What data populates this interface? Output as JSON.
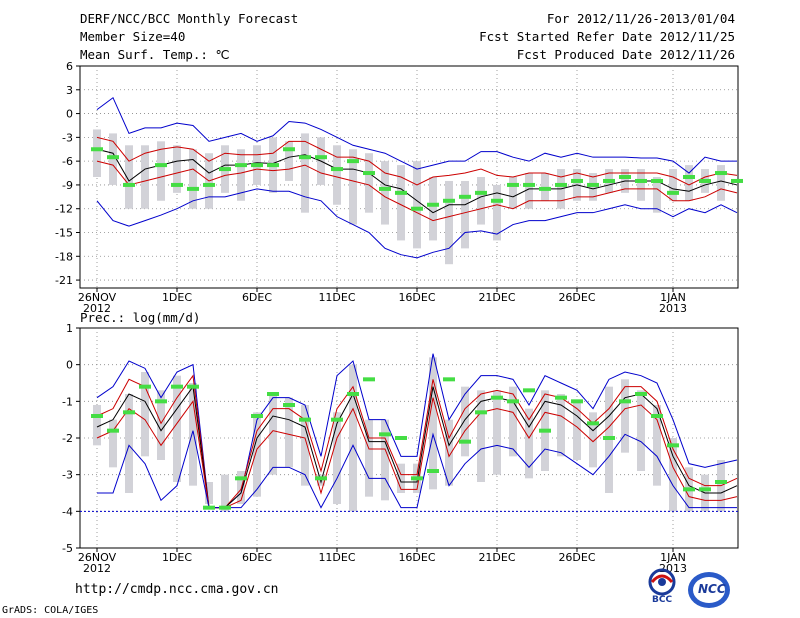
{
  "header": {
    "title": "DERF/NCC/BCC Monthly Forecast",
    "member_size": "Member Size=40",
    "variable": "Mean Surf. Temp.: ℃",
    "forecast_period": "For 2012/11/26-2013/01/04",
    "fcst_started": "Fcst Started Refer Date 2012/11/25",
    "fcst_produced": "Fcst Produced Date 2012/11/26"
  },
  "footer": {
    "url": "http://cmdp.ncc.cma.gov.cn",
    "grads": "GrADS: COLA/IGES",
    "logo_bcc": "BCC",
    "logo_ncc": "NCC"
  },
  "colors": {
    "mean": "#000000",
    "spread": "#cc0000",
    "extreme": "#0000cc",
    "box": "#d2d2d8",
    "obs_marker": "#44dd44"
  },
  "chart_data": [
    {
      "type": "line",
      "name": "temperature",
      "title": "Mean Surf. Temp.: ℃",
      "xlabel": "",
      "ylabel": "",
      "ylim": [
        -22,
        6
      ],
      "yticks": [
        6,
        3,
        0,
        -3,
        -6,
        -9,
        -12,
        -15,
        -18,
        -21
      ],
      "x_tick_days": [
        0,
        5,
        10,
        15,
        20,
        25,
        30,
        36
      ],
      "x_tick_labels": [
        "26NOV",
        "1DEC",
        "6DEC",
        "11DEC",
        "16DEC",
        "21DEC",
        "26DEC",
        "1JAN"
      ],
      "x_year_labels": [
        {
          "day": 0,
          "text": "2012"
        },
        {
          "day": 36,
          "text": "2013"
        }
      ],
      "grid": true,
      "days": 40,
      "series": [
        {
          "name": "max",
          "values": [
            0.5,
            2.0,
            -2.5,
            -1.8,
            -1.8,
            -1.2,
            -1.5,
            -3.5,
            -3.0,
            -2.5,
            -3.5,
            -2.8,
            -1.0,
            -1.2,
            -2.0,
            -3.0,
            -4.0,
            -4.5,
            -5.0,
            -6.0,
            -7.0,
            -6.5,
            -6.0,
            -6.0,
            -4.8,
            -4.8,
            -5.5,
            -6.0,
            -5.0,
            -5.5,
            -5.0,
            -5.5,
            -5.5,
            -5.5,
            -5.6,
            -5.6,
            -6.0,
            -7.5,
            -5.5,
            -6.0,
            -6.0
          ]
        },
        {
          "name": "upper",
          "values": [
            -3.0,
            -3.5,
            -6.0,
            -5.0,
            -4.5,
            -4.2,
            -4.5,
            -6.0,
            -5.0,
            -5.2,
            -5.2,
            -5.0,
            -3.5,
            -3.5,
            -4.5,
            -5.5,
            -5.5,
            -6.0,
            -7.5,
            -8.0,
            -9.0,
            -8.0,
            -7.8,
            -7.5,
            -7.0,
            -7.8,
            -8.0,
            -7.5,
            -7.5,
            -8.0,
            -7.5,
            -8.0,
            -7.5,
            -7.5,
            -7.5,
            -7.5,
            -8.0,
            -9.0,
            -8.0,
            -7.5,
            -7.8
          ]
        },
        {
          "name": "mean",
          "values": [
            -4.5,
            -5.0,
            -8.5,
            -7.0,
            -6.5,
            -6.0,
            -5.8,
            -7.5,
            -6.5,
            -6.5,
            -6.2,
            -6.3,
            -5.5,
            -5.2,
            -6.0,
            -7.0,
            -7.0,
            -7.5,
            -9.0,
            -9.5,
            -11.0,
            -12.5,
            -11.5,
            -11.5,
            -10.5,
            -10.0,
            -10.5,
            -9.5,
            -9.5,
            -9.5,
            -9.0,
            -9.5,
            -9.0,
            -8.5,
            -8.5,
            -8.5,
            -9.5,
            -9.8,
            -9.0,
            -8.5,
            -9.0
          ]
        },
        {
          "name": "lower",
          "values": [
            -6.0,
            -6.5,
            -9.0,
            -8.5,
            -8.0,
            -7.5,
            -7.0,
            -8.5,
            -7.8,
            -7.5,
            -7.0,
            -7.2,
            -7.0,
            -6.5,
            -7.5,
            -8.0,
            -8.5,
            -9.0,
            -10.5,
            -11.5,
            -12.5,
            -13.5,
            -13.0,
            -12.5,
            -12.0,
            -11.5,
            -12.0,
            -11.0,
            -11.0,
            -11.0,
            -10.5,
            -10.5,
            -10.0,
            -9.5,
            -9.5,
            -9.5,
            -11.0,
            -11.0,
            -10.5,
            -9.5,
            -10.0
          ]
        },
        {
          "name": "min",
          "values": [
            -11.0,
            -13.5,
            -14.2,
            -13.5,
            -12.8,
            -12.0,
            -11.0,
            -10.5,
            -10.5,
            -10.0,
            -9.5,
            -9.8,
            -9.8,
            -10.5,
            -11.0,
            -13.0,
            -14.0,
            -15.0,
            -17.0,
            -17.8,
            -18.2,
            -17.5,
            -17.0,
            -15.0,
            -14.8,
            -15.2,
            -14.0,
            -13.5,
            -13.5,
            -13.0,
            -12.5,
            -12.5,
            -12.0,
            -11.5,
            -12.0,
            -12.0,
            -13.0,
            -12.0,
            -12.5,
            -11.5,
            -12.5
          ]
        }
      ],
      "boxes": [
        [
          0,
          -8,
          -2
        ],
        [
          1,
          -9,
          -2.5
        ],
        [
          2,
          -12,
          -4
        ],
        [
          3,
          -12,
          -4
        ],
        [
          4,
          -11,
          -3.5
        ],
        [
          5,
          -10,
          -4
        ],
        [
          6,
          -12,
          -4.5
        ],
        [
          7,
          -12,
          -5
        ],
        [
          8,
          -10,
          -4
        ],
        [
          9,
          -11,
          -4.5
        ],
        [
          10,
          -9,
          -4
        ],
        [
          11,
          -10,
          -3
        ],
        [
          12,
          -8.5,
          -3.5
        ],
        [
          13,
          -12.5,
          -2.5
        ],
        [
          14,
          -9,
          -3
        ],
        [
          15,
          -11.5,
          -4
        ],
        [
          16,
          -14,
          -4.5
        ],
        [
          17,
          -12.5,
          -5
        ],
        [
          18,
          -14,
          -6
        ],
        [
          19,
          -16,
          -6.5
        ],
        [
          20,
          -17,
          -6
        ],
        [
          21,
          -16,
          -8
        ],
        [
          22,
          -19,
          -8.5
        ],
        [
          23,
          -17,
          -8.5
        ],
        [
          24,
          -14,
          -8
        ],
        [
          25,
          -16,
          -9
        ],
        [
          26,
          -12,
          -8
        ],
        [
          27,
          -12,
          -7.5
        ],
        [
          28,
          -11,
          -7.5
        ],
        [
          29,
          -12,
          -7
        ],
        [
          30,
          -11,
          -7
        ],
        [
          31,
          -11,
          -7.5
        ],
        [
          32,
          -10,
          -7
        ],
        [
          33,
          -10,
          -7
        ],
        [
          34,
          -11,
          -7
        ],
        [
          35,
          -12.5,
          -8
        ],
        [
          36,
          -11,
          -7
        ],
        [
          37,
          -11,
          -6.5
        ],
        [
          38,
          -10,
          -7
        ],
        [
          39,
          -11,
          -6.5
        ]
      ],
      "obs": [
        [
          0,
          -4.5
        ],
        [
          1,
          -5.5
        ],
        [
          2,
          -9
        ],
        [
          4,
          -6.5
        ],
        [
          5,
          -9
        ],
        [
          6,
          -9.5
        ],
        [
          7,
          -9
        ],
        [
          8,
          -7
        ],
        [
          9,
          -6.5
        ],
        [
          10,
          -6.5
        ],
        [
          11,
          -6.5
        ],
        [
          12,
          -4.5
        ],
        [
          13,
          -5.5
        ],
        [
          14,
          -5.5
        ],
        [
          15,
          -7
        ],
        [
          16,
          -6
        ],
        [
          17,
          -7.5
        ],
        [
          18,
          -9.5
        ],
        [
          19,
          -10
        ],
        [
          20,
          -12
        ],
        [
          21,
          -11.5
        ],
        [
          22,
          -11
        ],
        [
          23,
          -10.5
        ],
        [
          24,
          -10
        ],
        [
          25,
          -11
        ],
        [
          26,
          -9
        ],
        [
          27,
          -9
        ],
        [
          28,
          -9.5
        ],
        [
          29,
          -9
        ],
        [
          30,
          -8.5
        ],
        [
          31,
          -9
        ],
        [
          32,
          -8.5
        ],
        [
          33,
          -8
        ],
        [
          34,
          -8.5
        ],
        [
          35,
          -8.5
        ],
        [
          36,
          -10
        ],
        [
          37,
          -8
        ],
        [
          38,
          -8.5
        ],
        [
          39,
          -7.5
        ],
        [
          40,
          -8.5
        ]
      ]
    },
    {
      "type": "line",
      "name": "precipitation",
      "title": "Prec.: log(mm/d)",
      "xlabel": "",
      "ylabel": "",
      "ylim": [
        -5,
        1
      ],
      "yticks": [
        1,
        0,
        -1,
        -2,
        -3,
        -4,
        -5
      ],
      "x_tick_days": [
        0,
        5,
        10,
        15,
        20,
        25,
        30,
        36
      ],
      "x_tick_labels": [
        "26NOV",
        "1DEC",
        "6DEC",
        "11DEC",
        "16DEC",
        "21DEC",
        "26DEC",
        "1JAN"
      ],
      "x_year_labels": [
        {
          "day": 0,
          "text": "2012"
        },
        {
          "day": 36,
          "text": "2013"
        }
      ],
      "grid": true,
      "days": 40,
      "series": [
        {
          "name": "max",
          "values": [
            -0.9,
            -0.6,
            0.1,
            -0.1,
            -0.9,
            -0.2,
            0.0,
            -3.9,
            -3.9,
            -3.5,
            -1.5,
            -0.9,
            -0.9,
            -1.1,
            -2.5,
            -0.3,
            0.1,
            -1.5,
            -1.5,
            -2.5,
            -2.5,
            0.3,
            -1.5,
            -0.8,
            -0.3,
            -0.3,
            -0.4,
            -1.1,
            -0.3,
            -0.5,
            -0.7,
            -1.2,
            -0.4,
            -0.2,
            -0.3,
            -0.5,
            -1.5,
            -2.7,
            -2.8,
            -2.7,
            -2.6
          ]
        },
        {
          "name": "upper",
          "values": [
            -1.4,
            -1.2,
            -0.4,
            -0.6,
            -1.6,
            -0.9,
            -0.3,
            -3.9,
            -3.9,
            -3.4,
            -1.8,
            -1.2,
            -1.2,
            -1.5,
            -2.9,
            -1.2,
            -0.6,
            -2.0,
            -2.0,
            -3.0,
            -3.0,
            -0.4,
            -2.0,
            -1.2,
            -0.8,
            -0.7,
            -0.8,
            -1.5,
            -0.8,
            -0.9,
            -1.2,
            -1.6,
            -1.2,
            -0.6,
            -0.6,
            -1.0,
            -2.3,
            -3.1,
            -3.3,
            -3.3,
            -3.1
          ]
        },
        {
          "name": "mean",
          "values": [
            -1.7,
            -1.5,
            -0.8,
            -1.0,
            -1.8,
            -1.2,
            -0.6,
            -3.9,
            -3.9,
            -3.5,
            -2.0,
            -1.4,
            -1.5,
            -1.7,
            -3.2,
            -1.6,
            -0.8,
            -2.1,
            -2.1,
            -3.2,
            -3.2,
            -0.6,
            -2.2,
            -1.5,
            -1.0,
            -0.9,
            -1.0,
            -1.7,
            -1.0,
            -1.1,
            -1.4,
            -1.8,
            -1.4,
            -0.9,
            -0.8,
            -1.2,
            -2.5,
            -3.3,
            -3.5,
            -3.5,
            -3.3
          ]
        },
        {
          "name": "lower",
          "values": [
            -2.0,
            -1.8,
            -1.2,
            -1.5,
            -2.2,
            -1.6,
            -1.0,
            -3.9,
            -3.9,
            -3.7,
            -2.3,
            -1.8,
            -1.9,
            -2.0,
            -3.5,
            -2.0,
            -1.2,
            -2.3,
            -2.3,
            -3.4,
            -3.4,
            -0.9,
            -2.5,
            -1.8,
            -1.3,
            -1.2,
            -1.3,
            -2.0,
            -1.3,
            -1.4,
            -1.7,
            -2.1,
            -1.7,
            -1.2,
            -1.1,
            -1.5,
            -2.8,
            -3.6,
            -3.7,
            -3.7,
            -3.6
          ]
        },
        {
          "name": "min",
          "values": [
            -3.5,
            -3.5,
            -2.2,
            -2.7,
            -3.7,
            -3.3,
            -1.8,
            -3.9,
            -3.9,
            -3.9,
            -3.4,
            -2.8,
            -2.8,
            -3.0,
            -3.9,
            -3.1,
            -2.2,
            -3.1,
            -3.1,
            -3.9,
            -3.9,
            -1.9,
            -3.3,
            -2.7,
            -2.3,
            -2.2,
            -2.3,
            -2.8,
            -2.3,
            -2.4,
            -2.7,
            -3.0,
            -2.5,
            -1.9,
            -2.1,
            -2.5,
            -3.3,
            -3.9,
            -3.9,
            -3.9,
            -3.9
          ]
        }
      ],
      "boxes": [
        [
          0,
          -2.2,
          -1.1
        ],
        [
          1,
          -2.8,
          -1.5
        ],
        [
          2,
          -3.5,
          -0.8
        ],
        [
          3,
          -2.5,
          -0.2
        ],
        [
          4,
          -2.6,
          -0.7
        ],
        [
          5,
          -3.2,
          -0.3
        ],
        [
          6,
          -3.3,
          -0.5
        ],
        [
          7,
          -3.8,
          -3.2
        ],
        [
          8,
          -4.0,
          -3.0
        ],
        [
          9,
          -3.8,
          -2.9
        ],
        [
          10,
          -3.6,
          -1.3
        ],
        [
          11,
          -3.0,
          -0.8
        ],
        [
          12,
          -2.8,
          -0.9
        ],
        [
          13,
          -3.3,
          -1.1
        ],
        [
          14,
          -3.3,
          -3.0
        ],
        [
          15,
          -3.8,
          -1.3
        ],
        [
          16,
          -4.0,
          0.0
        ],
        [
          17,
          -3.6,
          -1.5
        ],
        [
          18,
          -3.7,
          -1.5
        ],
        [
          19,
          -3.5,
          -2.7
        ],
        [
          20,
          -3.5,
          -2.7
        ],
        [
          21,
          -3.4,
          0.2
        ],
        [
          22,
          -3.3,
          -1.5
        ],
        [
          23,
          -2.5,
          -0.6
        ],
        [
          24,
          -3.2,
          -0.7
        ],
        [
          25,
          -3.0,
          -0.7
        ],
        [
          26,
          -2.5,
          -0.6
        ],
        [
          27,
          -3.1,
          -1.2
        ],
        [
          28,
          -2.9,
          -0.7
        ],
        [
          29,
          -2.5,
          -0.8
        ],
        [
          30,
          -2.6,
          -1.0
        ],
        [
          31,
          -2.8,
          -1.3
        ],
        [
          32,
          -3.5,
          -0.6
        ],
        [
          33,
          -2.4,
          -0.4
        ],
        [
          34,
          -2.9,
          -0.7
        ],
        [
          35,
          -3.3,
          -1.1
        ],
        [
          36,
          -4.0,
          -2.0
        ],
        [
          37,
          -4.0,
          -2.8
        ],
        [
          38,
          -4.0,
          -3.0
        ],
        [
          39,
          -4.0,
          -2.6
        ]
      ],
      "obs": [
        [
          0,
          -1.4
        ],
        [
          1,
          -1.8
        ],
        [
          2,
          -1.3
        ],
        [
          3,
          -0.6
        ],
        [
          4,
          -1.0
        ],
        [
          5,
          -0.6
        ],
        [
          6,
          -0.6
        ],
        [
          7,
          -3.9
        ],
        [
          8,
          -3.9
        ],
        [
          9,
          -3.1
        ],
        [
          10,
          -1.4
        ],
        [
          11,
          -0.8
        ],
        [
          12,
          -1.1
        ],
        [
          13,
          -1.5
        ],
        [
          14,
          -3.1
        ],
        [
          15,
          -1.5
        ],
        [
          16,
          -0.8
        ],
        [
          17,
          -0.4
        ],
        [
          18,
          -1.9
        ],
        [
          19,
          -2.0
        ],
        [
          20,
          -3.1
        ],
        [
          21,
          -2.9
        ],
        [
          22,
          -0.4
        ],
        [
          23,
          -2.1
        ],
        [
          24,
          -1.3
        ],
        [
          25,
          -0.9
        ],
        [
          26,
          -1.0
        ],
        [
          27,
          -0.7
        ],
        [
          28,
          -1.8
        ],
        [
          29,
          -0.9
        ],
        [
          30,
          -1.0
        ],
        [
          31,
          -1.6
        ],
        [
          32,
          -2.0
        ],
        [
          33,
          -1.0
        ],
        [
          34,
          -0.8
        ],
        [
          35,
          -1.4
        ],
        [
          36,
          -2.2
        ],
        [
          37,
          -3.4
        ],
        [
          38,
          -3.4
        ],
        [
          39,
          -3.2
        ]
      ]
    }
  ]
}
